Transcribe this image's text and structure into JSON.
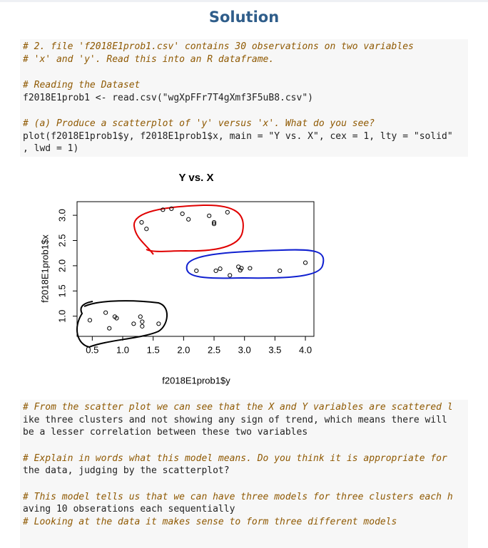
{
  "header": {
    "title": "Solution"
  },
  "code": [
    [
      "# 2. file 'f2018E1prob1.csv' contains 30 observations on two variables",
      "# 'x' and 'y'. Read this into an R dataframe."
    ],
    [
      "# Reading the Dataset",
      "f2018E1prob1 <- read.csv(\"wgXpFFr7T4gXmf3F5uB8.csv\")"
    ],
    [
      "# (a) Produce a scatterplot of 'y' versus 'x'. What do you see?",
      "plot(f2018E1prob1$y, f2018E1prob1$x, main = \"Y vs. X\", cex = 1, lty = \"solid\"",
      ", lwd = 1)"
    ]
  ],
  "chart_data": {
    "type": "scatter",
    "title": "Y vs. X",
    "x_label": "f2018E1prob1$y",
    "y_label": "f2018E1prob1$x",
    "x": [
      0.46,
      0.72,
      0.78,
      0.87,
      0.9,
      1.18,
      1.29,
      1.32,
      1.32,
      1.59,
      1.31,
      1.39,
      1.66,
      1.8,
      1.98,
      2.08,
      2.42,
      2.5,
      2.5,
      2.72,
      2.21,
      2.53,
      2.6,
      2.76,
      2.9,
      2.93,
      2.95,
      3.09,
      3.58,
      4.0
    ],
    "y": [
      0.92,
      1.07,
      0.76,
      0.99,
      0.96,
      0.85,
      0.99,
      0.89,
      0.8,
      0.85,
      2.86,
      2.73,
      3.11,
      3.13,
      3.03,
      2.92,
      2.99,
      2.86,
      2.83,
      3.06,
      1.9,
      1.9,
      1.94,
      1.81,
      1.98,
      1.91,
      1.95,
      1.95,
      1.9,
      2.06
    ],
    "color": "#000000",
    "xlim": [
      0.25,
      4.14
    ],
    "ylim": [
      0.6,
      3.27
    ],
    "xticks": [
      0.5,
      {
        "value": 1,
        "label": "1.0"
      },
      1.5,
      {
        "value": 2,
        "label": "2.0"
      },
      2.5,
      {
        "value": 3,
        "label": "3.0"
      },
      3.5,
      {
        "value": 4,
        "label": "4.0"
      }
    ],
    "yticks": [
      {
        "value": 1,
        "label": "1.0"
      },
      1.5,
      {
        "value": 2,
        "label": "2.0"
      },
      2.5,
      {
        "value": 3,
        "label": "3.0"
      }
    ]
  },
  "notes": [
    [
      "# From the scatter plot we can see that the X and Y variables are scattered l",
      "ike three clusters and not showing any sign of trend, which means there will",
      "be a lesser correlation between these two variables"
    ],
    [
      "# Explain in words what this model means. Do you think it is appropriate for",
      "the data, judging by the scatterplot?"
    ],
    [
      "# This model tells us that we can have three models for three clusters each h",
      "aving 10 obserations each sequentially",
      "# Looking at the data it makes sense to form three different models"
    ]
  ]
}
